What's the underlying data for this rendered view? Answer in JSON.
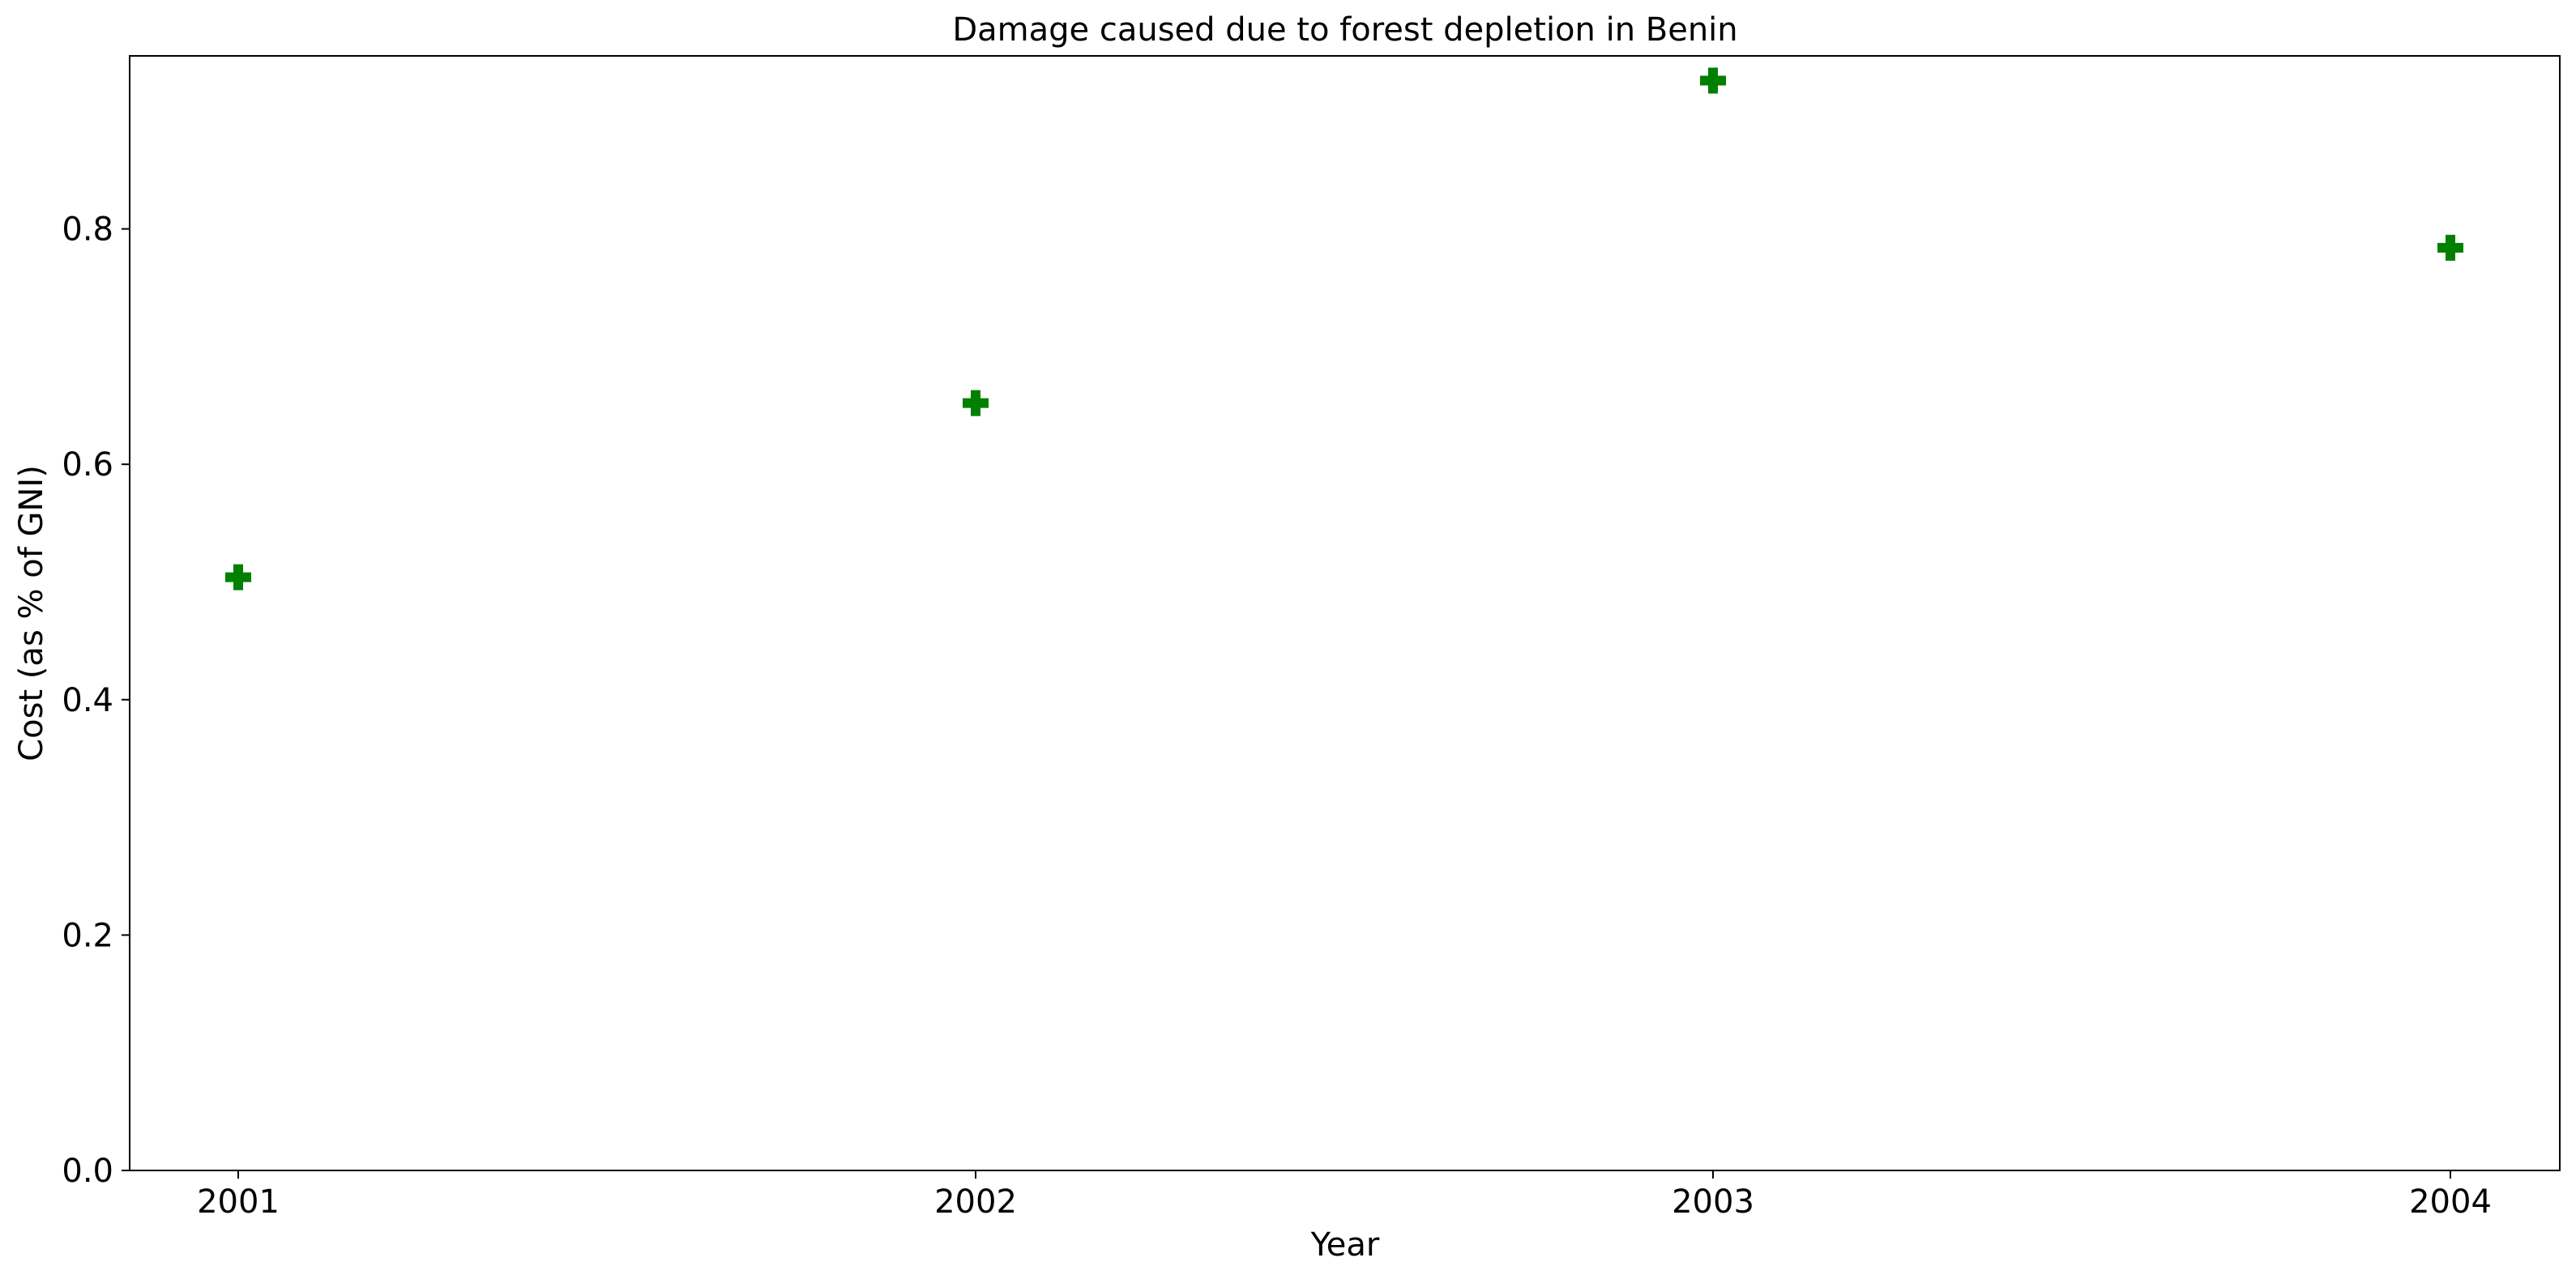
{
  "chart_data": {
    "type": "scatter",
    "title": "Damage caused due to forest depletion in Benin",
    "xlabel": "Year",
    "ylabel": "Cost (as % of GNI)",
    "x": [
      "2001",
      "2002",
      "2003",
      "2004"
    ],
    "series": [
      {
        "values": [
          0.504,
          0.652,
          0.926,
          0.784
        ],
        "color": "#008000",
        "marker": "plus-filled"
      }
    ],
    "ylim": [
      0,
      0.947
    ],
    "yticks": [
      "0.0",
      "0.2",
      "0.4",
      "0.6",
      "0.8"
    ],
    "xticks": [
      "2001",
      "2002",
      "2003",
      "2004"
    ],
    "grid": false,
    "legend": "none"
  }
}
